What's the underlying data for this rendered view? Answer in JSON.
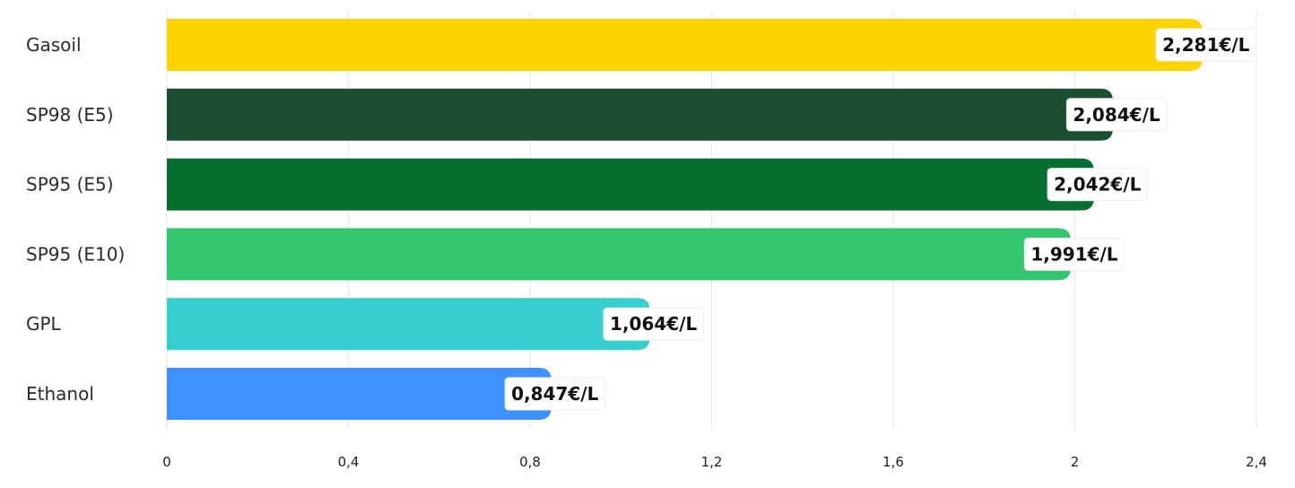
{
  "chart_data": {
    "type": "bar",
    "orientation": "horizontal",
    "categories": [
      "Gasoil",
      "SP98 (E5)",
      "SP95 (E5)",
      "SP95 (E10)",
      "GPL",
      "Ethanol"
    ],
    "values": [
      2.281,
      2.084,
      2.042,
      1.991,
      1.064,
      0.847
    ],
    "value_labels": [
      "2,281€/L",
      "2,084€/L",
      "2,042€/L",
      "1,991€/L",
      "1,064€/L",
      "0,847€/L"
    ],
    "colors": [
      "#FFD300",
      "#1A4F31",
      "#077031",
      "#33C66E",
      "#37CFCD",
      "#3D92FF"
    ],
    "xlim": [
      0,
      2.4
    ],
    "xticks": [
      0,
      0.4,
      0.8,
      1.2,
      1.6,
      2,
      2.4
    ],
    "xtick_labels": [
      "0",
      "0,4",
      "0,8",
      "1,2",
      "1,6",
      "2",
      "2,4"
    ],
    "grid": true,
    "title": "",
    "xlabel": "",
    "ylabel": ""
  }
}
